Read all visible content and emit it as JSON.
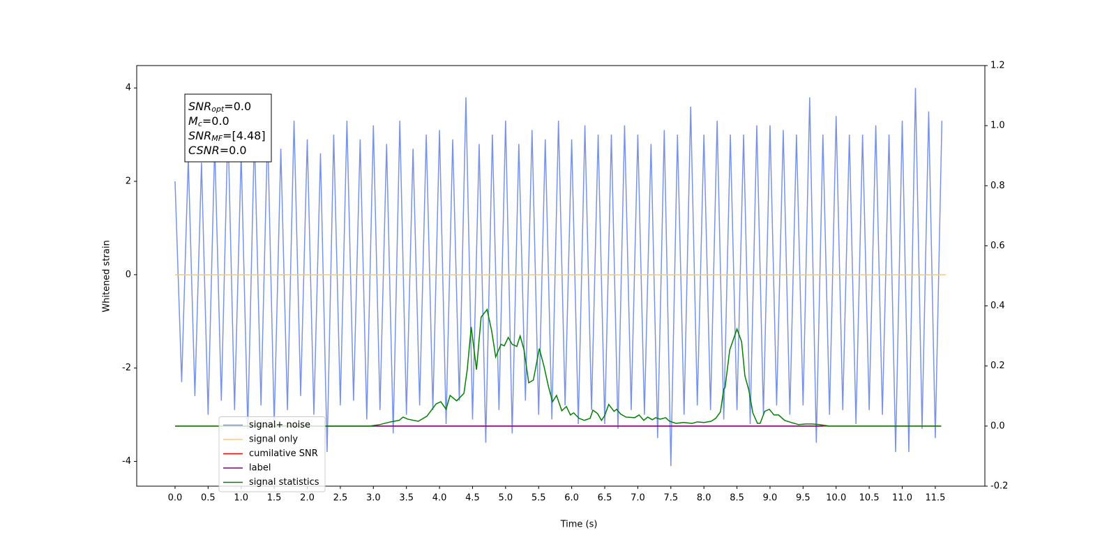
{
  "chart_data": {
    "type": "line",
    "xlabel": "Time (s)",
    "ylabel": "Whitened strain",
    "xlim": [
      -0.58,
      12.25
    ],
    "ylim": [
      -4.53,
      4.48
    ],
    "y2lim": [
      -0.2,
      1.2
    ],
    "xticks": [
      {
        "value": 0,
        "label": "0.0"
      },
      0.5,
      {
        "value": 1,
        "label": "1.0"
      },
      1.5,
      {
        "value": 2,
        "label": "2.0"
      },
      2.5,
      {
        "value": 3,
        "label": "3.0"
      },
      3.5,
      {
        "value": 4,
        "label": "4.0"
      },
      4.5,
      {
        "value": 5,
        "label": "5.0"
      },
      5.5,
      {
        "value": 6,
        "label": "6.0"
      },
      6.5,
      {
        "value": 7,
        "label": "7.0"
      },
      7.5,
      {
        "value": 8,
        "label": "8.0"
      },
      8.5,
      {
        "value": 9,
        "label": "9.0"
      },
      9.5,
      {
        "value": 10,
        "label": "10.0"
      },
      10.5,
      {
        "value": 11,
        "label": "11.0"
      },
      11.5
    ],
    "yticks": [
      -4,
      -2,
      0,
      2,
      4
    ],
    "y2ticks": [
      -0.2,
      {
        "value": 0,
        "label": "0.0"
      },
      0.2,
      0.4,
      0.6,
      0.8,
      {
        "value": 1,
        "label": "1.0"
      },
      1.2
    ],
    "legend_loc": "lower left",
    "annotation": [
      {
        "symbol": "SNR",
        "sub": "opt",
        "text": "=0.0"
      },
      {
        "symbol": "M",
        "sub": "c",
        "text": "=0.0"
      },
      {
        "symbol": "SNR",
        "sub": "MF",
        "text": "=[4.48]"
      },
      {
        "symbol": "CSNR",
        "sub": null,
        "text": "=0.0"
      }
    ],
    "series": [
      {
        "name": "signal+ noise",
        "color": "#7893e6",
        "axis": "y",
        "x": [
          0,
          0.1,
          0.2,
          0.3,
          0.4,
          0.5,
          0.6,
          0.7,
          0.8,
          0.9,
          1,
          1.1,
          1.2,
          1.3,
          1.4,
          1.5,
          1.6,
          1.7,
          1.8,
          1.9,
          2,
          2.1,
          2.2,
          2.3,
          2.4,
          2.5,
          2.6,
          2.7,
          2.8,
          2.9,
          3,
          3.1,
          3.2,
          3.3,
          3.4,
          3.5,
          3.6,
          3.7,
          3.8,
          3.9,
          4,
          4.1,
          4.2,
          4.3,
          4.4,
          4.5,
          4.6,
          4.7,
          4.8,
          4.9,
          5,
          5.1,
          5.2,
          5.3,
          5.4,
          5.5,
          5.6,
          5.7,
          5.8,
          5.9,
          6,
          6.1,
          6.2,
          6.3,
          6.4,
          6.5,
          6.6,
          6.7,
          6.8,
          6.9,
          7,
          7.1,
          7.2,
          7.3,
          7.4,
          7.5,
          7.6,
          7.7,
          7.8,
          7.9,
          8,
          8.1,
          8.2,
          8.3,
          8.4,
          8.5,
          8.6,
          8.7,
          8.8,
          8.9,
          9,
          9.1,
          9.2,
          9.3,
          9.4,
          9.5,
          9.6,
          9.7,
          9.8,
          9.9,
          10,
          10.1,
          10.2,
          10.3,
          10.4,
          10.5,
          10.6,
          10.7,
          10.8,
          10.9,
          11,
          11.1,
          11.2,
          11.3,
          11.4,
          11.5,
          11.6
        ],
        "values": [
          2.0,
          -2.3,
          2.5,
          -2.6,
          2.4,
          -3.0,
          2.8,
          -2.7,
          3.2,
          -2.9,
          2.6,
          -3.3,
          3.0,
          -2.8,
          3.1,
          -3.2,
          2.7,
          -2.9,
          3.3,
          -2.6,
          2.9,
          -3.0,
          2.6,
          -3.8,
          3.0,
          -2.8,
          3.3,
          -2.7,
          2.9,
          -3.1,
          3.2,
          -2.9,
          2.8,
          -3.4,
          3.3,
          -3.0,
          2.7,
          -2.8,
          3.0,
          -2.9,
          3.1,
          -3.2,
          2.9,
          -2.7,
          3.8,
          -3.1,
          2.8,
          -3.6,
          3.0,
          -2.9,
          3.3,
          -3.4,
          2.8,
          -2.7,
          3.1,
          -3.0,
          2.9,
          -3.1,
          3.3,
          -2.8,
          2.9,
          -3.2,
          3.2,
          -2.9,
          3.0,
          -3.2,
          3.0,
          -3.3,
          3.2,
          -2.9,
          3.0,
          -3.0,
          2.8,
          -3.5,
          3.1,
          -4.1,
          3.0,
          -3.0,
          3.6,
          -2.8,
          3.0,
          -2.9,
          3.3,
          -3.1,
          3.0,
          -2.9,
          3.0,
          -3.2,
          3.2,
          -3.0,
          3.2,
          -2.8,
          3.1,
          -3.0,
          3.0,
          -2.8,
          3.8,
          -3.6,
          3.0,
          -3.0,
          3.4,
          -2.9,
          3.0,
          -3.2,
          3.0,
          -2.9,
          3.2,
          -3.0,
          3.0,
          -3.8,
          3.3,
          -3.8,
          4.0,
          -3.3,
          3.5,
          -3.5,
          3.3
        ]
      },
      {
        "name": "signal only",
        "color": "#ffc870",
        "axis": "y",
        "x": [
          0,
          11.66
        ],
        "values": [
          0,
          0
        ]
      },
      {
        "name": "cumilative SNR",
        "color": "#ff0000",
        "axis": "y2",
        "x": [
          0,
          11.59
        ],
        "values": [
          0,
          0
        ]
      },
      {
        "name": "label",
        "color": "#800080",
        "axis": "y2",
        "x": [
          0.73,
          9.8
        ],
        "values": [
          0,
          0
        ]
      },
      {
        "name": "signal statistics",
        "color": "#008000",
        "axis": "y2",
        "x": [
          0,
          2.94,
          3.1,
          3.26,
          3.39,
          3.45,
          3.52,
          3.68,
          3.81,
          3.95,
          4.02,
          4.1,
          4.16,
          4.26,
          4.37,
          4.42,
          4.48,
          4.56,
          4.63,
          4.72,
          4.79,
          4.85,
          4.93,
          4.98,
          5.04,
          5.1,
          5.17,
          5.22,
          5.28,
          5.35,
          5.42,
          5.51,
          5.58,
          5.65,
          5.71,
          5.77,
          5.85,
          5.92,
          5.98,
          6.03,
          6.11,
          6.19,
          6.28,
          6.32,
          6.39,
          6.45,
          6.5,
          6.56,
          6.64,
          6.68,
          6.74,
          6.82,
          6.95,
          7.02,
          7.09,
          7.15,
          7.22,
          7.27,
          7.34,
          7.42,
          7.48,
          7.58,
          7.69,
          7.82,
          7.9,
          8.0,
          8.11,
          8.18,
          8.25,
          8.3,
          8.32,
          8.39,
          8.45,
          8.5,
          8.57,
          8.62,
          8.68,
          8.74,
          8.81,
          8.85,
          8.92,
          8.99,
          9.06,
          9.13,
          9.22,
          9.32,
          9.43,
          9.54,
          9.64,
          9.75,
          9.9,
          11.59
        ],
        "values": [
          0,
          0,
          0.005,
          0.014,
          0.019,
          0.03,
          0.023,
          0.016,
          0.033,
          0.074,
          0.081,
          0.056,
          0.102,
          0.084,
          0.109,
          0.188,
          0.33,
          0.188,
          0.363,
          0.388,
          0.316,
          0.23,
          0.272,
          0.267,
          0.295,
          0.272,
          0.265,
          0.3,
          0.253,
          0.144,
          0.153,
          0.258,
          0.2,
          0.13,
          0.081,
          0.102,
          0.051,
          0.065,
          0.037,
          0.044,
          0.026,
          0.019,
          0.026,
          0.053,
          0.042,
          0.019,
          0.035,
          0.072,
          0.049,
          0.056,
          0.04,
          0.03,
          0.028,
          0.037,
          0.019,
          0.03,
          0.021,
          0.028,
          0.023,
          0.028,
          0.016,
          0.009,
          0.012,
          0.009,
          0.014,
          0.012,
          0.016,
          0.026,
          0.047,
          0.123,
          0.128,
          0.253,
          0.291,
          0.323,
          0.281,
          0.167,
          0.119,
          0.044,
          0.009,
          0.009,
          0.049,
          0.056,
          0.037,
          0.037,
          0.019,
          0.012,
          0.005,
          0.007,
          0.007,
          0.005,
          0,
          0
        ]
      }
    ]
  }
}
